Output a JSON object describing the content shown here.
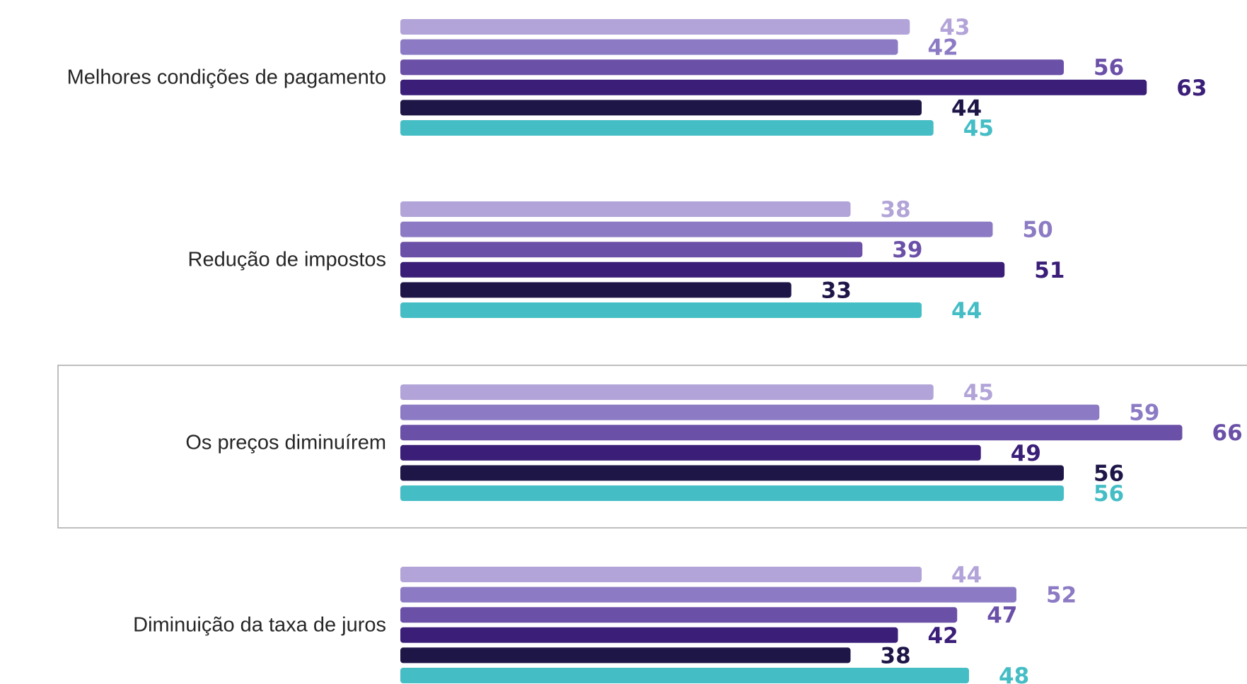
{
  "chart_data": {
    "type": "bar",
    "orientation": "horizontal",
    "categories": [
      "Melhores condições de pagamento",
      "Redução de impostos",
      "Os preços diminuírem",
      "Diminuição da taxa de juros"
    ],
    "series": [
      {
        "values": [
          43,
          38,
          45,
          44
        ],
        "color": "#b2a4d8"
      },
      {
        "values": [
          42,
          50,
          59,
          52
        ],
        "color": "#8c7bc4"
      },
      {
        "values": [
          56,
          39,
          66,
          47
        ],
        "color": "#6b50a8"
      },
      {
        "values": [
          63,
          51,
          49,
          42
        ],
        "color": "#3a1e78"
      },
      {
        "values": [
          44,
          33,
          56,
          38
        ],
        "color": "#1f1648"
      },
      {
        "values": [
          45,
          44,
          56,
          48
        ],
        "color": "#45bdc5"
      }
    ],
    "highlighted_category": "Os preços diminuírem",
    "xlim": [
      0,
      70
    ],
    "grid": false,
    "legend": "none",
    "value_labels": true
  }
}
